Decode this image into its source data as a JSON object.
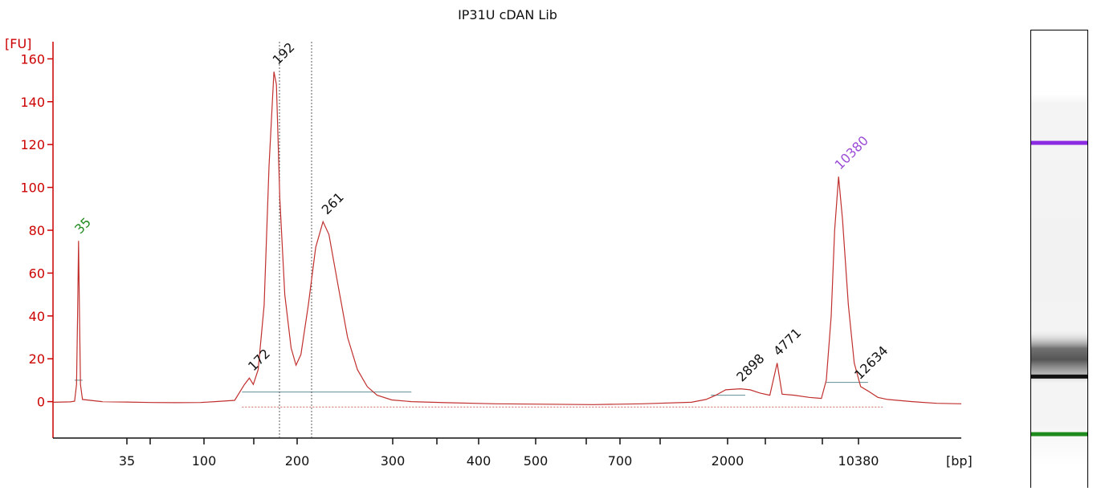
{
  "chart_data": {
    "type": "line",
    "title": "IP31U cDAN Lib",
    "ylabel": "[FU]",
    "xlabel": "[bp]",
    "ylim": [
      -17,
      168
    ],
    "yticks": [
      0,
      20,
      40,
      60,
      80,
      100,
      120,
      140,
      160
    ],
    "x_tick_labels": [
      "35",
      "",
      "100",
      "",
      "200",
      "300",
      "",
      "400",
      "500",
      "",
      "700",
      "",
      "2000",
      "",
      "",
      "10380"
    ],
    "grid": false,
    "series": [
      {
        "color": "#c0302e",
        "points": [
          [
            0,
            -0.3
          ],
          [
            0.18,
            -0.2
          ],
          [
            0.35,
            -0.1
          ],
          [
            0.44,
            0.2
          ],
          [
            0.48,
            8
          ],
          [
            0.5,
            40
          ],
          [
            0.52,
            75
          ],
          [
            0.54,
            40
          ],
          [
            0.56,
            8
          ],
          [
            0.6,
            1
          ],
          [
            1,
            0
          ],
          [
            1.5,
            -0.2
          ],
          [
            2,
            -0.4
          ],
          [
            2.5,
            -0.5
          ],
          [
            3,
            -0.4
          ],
          [
            3.3,
            0
          ],
          [
            3.7,
            0.6
          ],
          [
            3.9,
            8
          ],
          [
            4.0,
            11
          ],
          [
            4.08,
            8
          ],
          [
            4.18,
            15
          ],
          [
            4.3,
            45
          ],
          [
            4.4,
            110
          ],
          [
            4.5,
            154
          ],
          [
            4.55,
            148
          ],
          [
            4.62,
            95
          ],
          [
            4.72,
            50
          ],
          [
            4.85,
            25
          ],
          [
            4.95,
            17
          ],
          [
            5.05,
            22
          ],
          [
            5.2,
            45
          ],
          [
            5.35,
            72
          ],
          [
            5.5,
            84
          ],
          [
            5.62,
            78
          ],
          [
            5.8,
            55
          ],
          [
            6.0,
            30
          ],
          [
            6.2,
            15
          ],
          [
            6.4,
            7
          ],
          [
            6.6,
            3
          ],
          [
            6.9,
            0.8
          ],
          [
            7.3,
            0
          ],
          [
            8,
            -0.5
          ],
          [
            9,
            -1
          ],
          [
            10,
            -1.2
          ],
          [
            11,
            -1.4
          ],
          [
            12,
            -1
          ],
          [
            13,
            -0.3
          ],
          [
            13.3,
            1
          ],
          [
            13.5,
            3
          ],
          [
            13.7,
            5.5
          ],
          [
            14.0,
            6
          ],
          [
            14.2,
            5.5
          ],
          [
            14.4,
            4
          ],
          [
            14.6,
            3
          ],
          [
            14.75,
            18
          ],
          [
            14.85,
            3.5
          ],
          [
            15.1,
            3
          ],
          [
            15.4,
            2
          ],
          [
            15.65,
            1.5
          ],
          [
            15.75,
            10
          ],
          [
            15.85,
            40
          ],
          [
            15.92,
            80
          ],
          [
            16.0,
            105
          ],
          [
            16.08,
            85
          ],
          [
            16.2,
            45
          ],
          [
            16.32,
            18
          ],
          [
            16.45,
            7
          ],
          [
            16.6,
            5
          ],
          [
            16.8,
            2
          ],
          [
            17.0,
            1
          ],
          [
            17.5,
            0
          ],
          [
            18,
            -0.8
          ],
          [
            18.5,
            -1
          ]
        ]
      }
    ],
    "annotations": [
      {
        "text": "35",
        "x": 0.52,
        "y": 75,
        "color": "#228b22"
      },
      {
        "text": "192",
        "x": 4.55,
        "y": 154,
        "color": "#111111"
      },
      {
        "text": "261",
        "x": 5.55,
        "y": 84,
        "color": "#111111"
      },
      {
        "text": "172",
        "x": 4.05,
        "y": 11,
        "color": "#111111"
      },
      {
        "text": "2898",
        "x": 14.0,
        "y": 6,
        "color": "#111111"
      },
      {
        "text": "4771",
        "x": 14.75,
        "y": 18,
        "color": "#111111"
      },
      {
        "text": "10380",
        "x": 16.0,
        "y": 105,
        "color": "#9b4dd6"
      },
      {
        "text": "12634",
        "x": 16.4,
        "y": 7,
        "color": "#111111"
      }
    ]
  },
  "gel_bands": [
    {
      "name": "upper-marker",
      "color": "#8a2be2",
      "position": 0.2466
    },
    {
      "name": "sample-smear",
      "color": "#333333",
      "position": 0.7313
    },
    {
      "name": "lower-marker",
      "color": "#1e8a1e",
      "position": 0.8836
    }
  ]
}
